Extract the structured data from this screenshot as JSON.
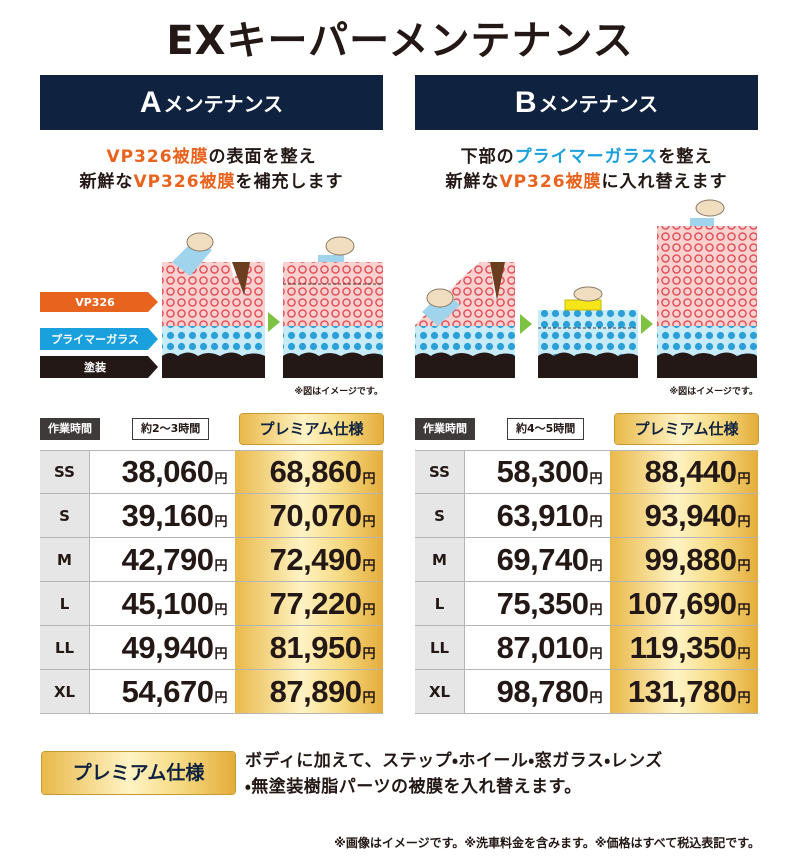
{
  "title": "EXキーパーメンテナンス",
  "panels": [
    {
      "letter": "A",
      "heading": "メンテナンス",
      "description": [
        [
          {
            "text": "VP326被膜",
            "color": "#e8641e"
          },
          {
            "text": "の表面を整え"
          }
        ],
        [
          {
            "text": "新鮮な"
          },
          {
            "text": "VP326被膜",
            "color": "#e8641e"
          },
          {
            "text": "を補充します"
          }
        ]
      ],
      "layers": [
        "VP326",
        "プライマーガラス",
        "塗装"
      ],
      "note": "※図はイメージです。",
      "time_label": "作業時間",
      "time": "約2〜3時間",
      "premium_label": "プレミアム仕様",
      "rows": [
        {
          "size": "SS",
          "standard": "38,060",
          "premium": "68,860"
        },
        {
          "size": "S",
          "standard": "39,160",
          "premium": "70,070"
        },
        {
          "size": "M",
          "standard": "42,790",
          "premium": "72,490"
        },
        {
          "size": "L",
          "standard": "45,100",
          "premium": "77,220"
        },
        {
          "size": "LL",
          "standard": "49,940",
          "premium": "81,950"
        },
        {
          "size": "XL",
          "standard": "54,670",
          "premium": "87,890"
        }
      ]
    },
    {
      "letter": "B",
      "heading": "メンテナンス",
      "description": [
        [
          {
            "text": "下部の"
          },
          {
            "text": "プライマーガラス",
            "color": "#1aa0dc"
          },
          {
            "text": "を整え"
          }
        ],
        [
          {
            "text": "新鮮な"
          },
          {
            "text": "VP326被膜",
            "color": "#e8641e"
          },
          {
            "text": "に入れ替えます"
          }
        ]
      ],
      "note": "※図はイメージです。",
      "time_label": "作業時間",
      "time": "約4〜5時間",
      "premium_label": "プレミアム仕様",
      "rows": [
        {
          "size": "SS",
          "standard": "58,300",
          "premium": "88,440"
        },
        {
          "size": "S",
          "standard": "63,910",
          "premium": "93,940"
        },
        {
          "size": "M",
          "standard": "69,740",
          "premium": "99,880"
        },
        {
          "size": "L",
          "standard": "75,350",
          "premium": "107,690"
        },
        {
          "size": "LL",
          "standard": "87,010",
          "premium": "119,350"
        },
        {
          "size": "XL",
          "standard": "98,780",
          "premium": "131,780"
        }
      ]
    }
  ],
  "currency": "円",
  "premium_note": {
    "badge": "プレミアム仕様",
    "lines": [
      "ボディに加えて、ステップ・ホイール・窓ガラス・レンズ",
      "・無塗装樹脂パーツの被膜を入れ替えます。"
    ]
  },
  "footer": "※画像はイメージです。※洗車料金を含みます。※価格はすべて税込表記です。"
}
